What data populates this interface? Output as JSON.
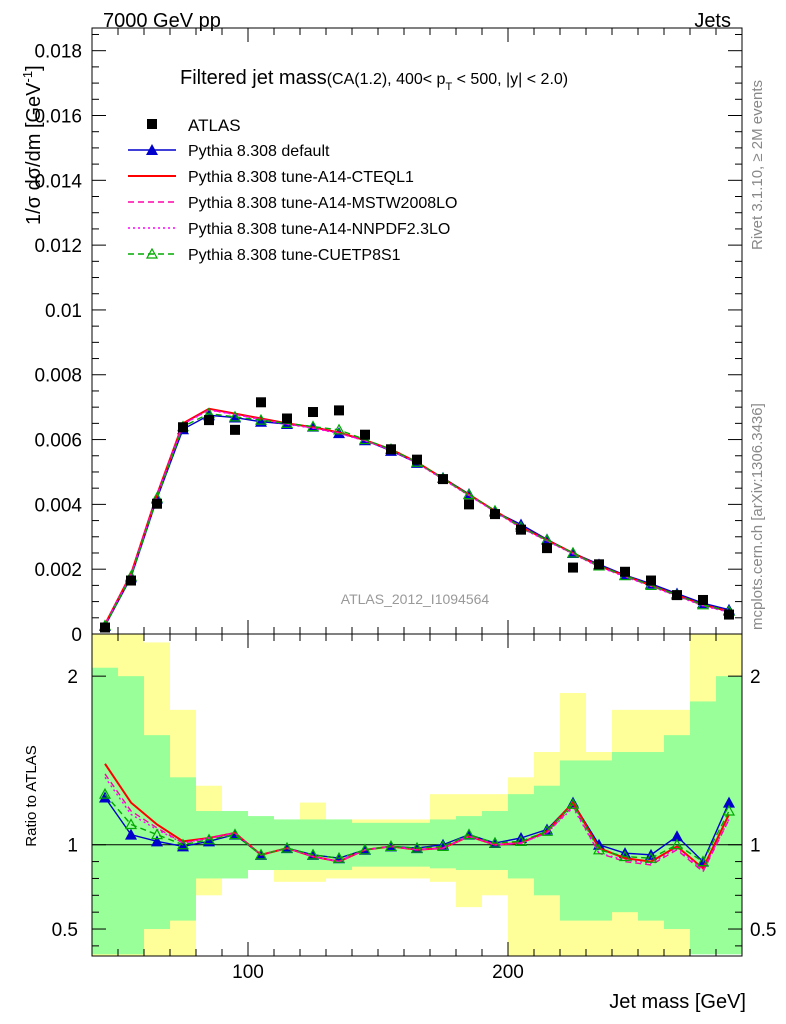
{
  "header": {
    "left": "7000 GeV pp",
    "right": "Jets",
    "side_top": "Rivet 3.1.10, ≥ 2M events",
    "side_bottom": "mcplots.cern.ch [arXiv:1306.3436]",
    "watermark": "ATLAS_2012_I1094564"
  },
  "chart_data": {
    "type": "line",
    "title_main": "Filtered jet mass",
    "title_cond": "(CA(1.2), 400< p",
    "title_sub": "T",
    "title_tail": " < 500, |y| < 2.0)",
    "ylabel_top": "1/σ dσ/dm [GeV",
    "ylabel_top_sup": "-1",
    "ylabel_top_close": "]",
    "ylabel_bottom": "Ratio to ATLAS",
    "xlabel": "Jet mass [GeV]",
    "xlim": [
      40,
      290
    ],
    "ylim_top": [
      0,
      0.0187
    ],
    "ylim_bottom": [
      0.34,
      2.25
    ],
    "x_ticks": [
      100,
      200
    ],
    "x_tick_labels": [
      "100",
      "200"
    ],
    "y_ticks_top": [
      0,
      0.002,
      0.004,
      0.006,
      0.008,
      0.01,
      0.012,
      0.014,
      0.016,
      0.018
    ],
    "y_tick_labels_top": [
      "0",
      "0.002",
      "0.004",
      "0.006",
      "0.008",
      "0.01",
      "0.012",
      "0.014",
      "0.016",
      "0.018"
    ],
    "y_ticks_bottom": [
      0.5,
      1,
      2
    ],
    "y_tick_labels_bottom": [
      "0.5",
      "1",
      "2"
    ],
    "x": [
      45,
      55,
      65,
      75,
      85,
      95,
      105,
      115,
      125,
      135,
      145,
      155,
      165,
      175,
      185,
      195,
      205,
      215,
      225,
      235,
      245,
      255,
      265,
      275,
      285
    ],
    "bin_edges": [
      40,
      50,
      60,
      70,
      80,
      90,
      100,
      110,
      120,
      130,
      140,
      150,
      160,
      170,
      180,
      190,
      200,
      210,
      220,
      230,
      240,
      250,
      260,
      270,
      280,
      290
    ],
    "data": {
      "name": "ATLAS",
      "values": [
        0.0002,
        0.00165,
        0.00402,
        0.00638,
        0.0066,
        0.0063,
        0.00715,
        0.00665,
        0.00685,
        0.0069,
        0.00615,
        0.0057,
        0.00538,
        0.00478,
        0.004,
        0.0037,
        0.00322,
        0.00265,
        0.00205,
        0.00215,
        0.00192,
        0.00165,
        0.0012,
        0.00105,
        0.0006
      ],
      "color": "#000000"
    },
    "band_green": [
      [
        0.35,
        2.05
      ],
      [
        0.35,
        2.0
      ],
      [
        0.5,
        1.65
      ],
      [
        0.55,
        1.4
      ],
      [
        0.8,
        1.2
      ],
      [
        0.8,
        1.2
      ],
      [
        0.85,
        1.17
      ],
      [
        0.85,
        1.15
      ],
      [
        0.85,
        1.15
      ],
      [
        0.85,
        1.15
      ],
      [
        0.87,
        1.13
      ],
      [
        0.87,
        1.13
      ],
      [
        0.87,
        1.13
      ],
      [
        0.86,
        1.15
      ],
      [
        0.85,
        1.17
      ],
      [
        0.85,
        1.2
      ],
      [
        0.8,
        1.3
      ],
      [
        0.7,
        1.35
      ],
      [
        0.55,
        1.5
      ],
      [
        0.55,
        1.5
      ],
      [
        0.6,
        1.55
      ],
      [
        0.55,
        1.55
      ],
      [
        0.5,
        1.65
      ],
      [
        0.35,
        1.85
      ],
      [
        0.35,
        2.0
      ]
    ],
    "band_yellow": [
      [
        0.34,
        2.25
      ],
      [
        0.34,
        2.25
      ],
      [
        0.34,
        2.2
      ],
      [
        0.34,
        1.8
      ],
      [
        0.7,
        1.35
      ],
      [
        0.92,
        1.15
      ],
      [
        0.88,
        1.15
      ],
      [
        0.78,
        1.15
      ],
      [
        0.78,
        1.25
      ],
      [
        0.8,
        1.15
      ],
      [
        0.8,
        1.15
      ],
      [
        0.8,
        1.15
      ],
      [
        0.8,
        1.15
      ],
      [
        0.78,
        1.3
      ],
      [
        0.63,
        1.3
      ],
      [
        0.7,
        1.3
      ],
      [
        0.34,
        1.4
      ],
      [
        0.34,
        1.55
      ],
      [
        0.34,
        1.9
      ],
      [
        0.34,
        1.55
      ],
      [
        0.34,
        1.8
      ],
      [
        0.34,
        1.8
      ],
      [
        0.34,
        1.8
      ],
      [
        0.42,
        2.25
      ],
      [
        0.42,
        2.25
      ]
    ],
    "series": [
      {
        "name": "Pythia 8.308 default",
        "color": "#0000cc",
        "dash": "solid",
        "marker": "triangle-filled",
        "values": [
          0.00025,
          0.00175,
          0.00418,
          0.00632,
          0.00675,
          0.00668,
          0.00655,
          0.00648,
          0.0064,
          0.0062,
          0.00598,
          0.00565,
          0.00528,
          0.00482,
          0.00432,
          0.00378,
          0.00338,
          0.00292,
          0.0025,
          0.00215,
          0.00182,
          0.00155,
          0.00125,
          0.00095,
          0.00075
        ],
        "ratio": [
          1.28,
          1.06,
          1.02,
          0.99,
          1.02,
          1.06,
          0.94,
          0.98,
          0.94,
          0.92,
          0.97,
          0.99,
          0.98,
          1.0,
          1.06,
          1.01,
          1.04,
          1.09,
          1.25,
          1.0,
          0.95,
          0.94,
          1.05,
          0.9,
          1.25
        ]
      },
      {
        "name": "Pythia 8.308 tune-A14-CTEQL1",
        "color": "#ff0000",
        "dash": "solid",
        "marker": "none",
        "values": [
          0.0003,
          0.00185,
          0.0043,
          0.0065,
          0.00695,
          0.0068,
          0.00665,
          0.0065,
          0.00638,
          0.00622,
          0.00598,
          0.0057,
          0.0053,
          0.0048,
          0.0043,
          0.0038,
          0.0033,
          0.0029,
          0.0025,
          0.0021,
          0.0018,
          0.0015,
          0.0012,
          0.0009,
          0.0007
        ],
        "ratio": [
          1.48,
          1.25,
          1.12,
          1.02,
          1.04,
          1.07,
          0.94,
          0.98,
          0.93,
          0.9,
          0.97,
          0.99,
          0.97,
          0.98,
          1.05,
          1.0,
          1.01,
          1.08,
          1.25,
          0.98,
          0.92,
          0.9,
          0.99,
          0.86,
          1.18
        ]
      },
      {
        "name": "Pythia 8.308 tune-A14-MSTW2008LO",
        "color": "#ff00aa",
        "dash": "dashed",
        "marker": "none",
        "values": [
          0.0003,
          0.00183,
          0.00428,
          0.00648,
          0.00692,
          0.00678,
          0.00663,
          0.00648,
          0.00636,
          0.0062,
          0.00597,
          0.00568,
          0.00528,
          0.00478,
          0.00428,
          0.00378,
          0.00328,
          0.00288,
          0.00248,
          0.00208,
          0.00178,
          0.00148,
          0.00118,
          0.00088,
          0.00068
        ],
        "ratio": [
          1.42,
          1.2,
          1.1,
          1.01,
          1.04,
          1.07,
          0.94,
          0.98,
          0.93,
          0.9,
          0.97,
          0.99,
          0.97,
          0.98,
          1.05,
          1.0,
          1.01,
          1.07,
          1.23,
          0.95,
          0.9,
          0.88,
          0.97,
          0.84,
          1.15
        ]
      },
      {
        "name": "Pythia 8.308 tune-A14-NNPDF2.3LO",
        "color": "#ff00ff",
        "dash": "dotted",
        "marker": "none",
        "values": [
          0.00029,
          0.00182,
          0.00427,
          0.00647,
          0.00691,
          0.00677,
          0.00662,
          0.00647,
          0.00635,
          0.00619,
          0.00596,
          0.00567,
          0.00527,
          0.00477,
          0.00427,
          0.00377,
          0.00327,
          0.00287,
          0.00247,
          0.00207,
          0.00177,
          0.00147,
          0.00117,
          0.00087,
          0.00067
        ],
        "ratio": [
          1.4,
          1.18,
          1.09,
          1.01,
          1.04,
          1.07,
          0.94,
          0.98,
          0.93,
          0.9,
          0.97,
          0.99,
          0.97,
          0.98,
          1.05,
          1.0,
          1.01,
          1.07,
          1.22,
          0.95,
          0.91,
          0.89,
          0.98,
          0.85,
          1.15
        ]
      },
      {
        "name": "Pythia 8.308 tune-CUETP8S1",
        "color": "#00aa00",
        "dash": "dashed",
        "marker": "triangle-open",
        "values": [
          0.00026,
          0.00178,
          0.0042,
          0.0064,
          0.0068,
          0.0067,
          0.0066,
          0.0065,
          0.0064,
          0.0063,
          0.006,
          0.0057,
          0.0053,
          0.0048,
          0.0043,
          0.0038,
          0.0033,
          0.0029,
          0.0025,
          0.0021,
          0.0018,
          0.0015,
          0.0012,
          0.0009,
          0.0007
        ],
        "ratio": [
          1.3,
          1.12,
          1.06,
          1.0,
          1.03,
          1.06,
          0.94,
          0.98,
          0.94,
          0.92,
          0.97,
          0.99,
          0.98,
          0.99,
          1.06,
          1.01,
          1.02,
          1.08,
          1.24,
          0.97,
          0.93,
          0.92,
          1.0,
          0.9,
          1.2
        ]
      }
    ]
  }
}
